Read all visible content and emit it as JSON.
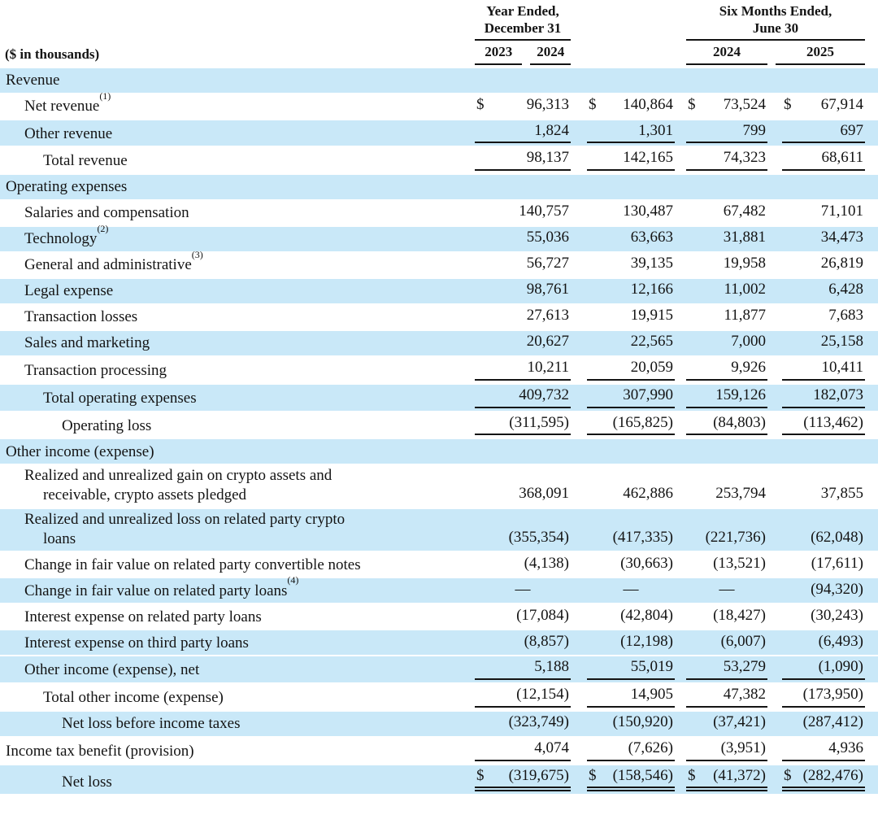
{
  "units_label": "($ in thousands)",
  "currency_symbol": "$",
  "colors": {
    "row_highlight": "#c9e8f8",
    "rule": "#141414",
    "text": "#141414"
  },
  "header": {
    "groups": [
      {
        "title_line1": "Year Ended,",
        "title_line2": "December 31",
        "years": [
          "2023",
          "2024"
        ]
      },
      {
        "title_line1": "Six Months Ended,",
        "title_line2": "June 30",
        "years": [
          "2024",
          "2025"
        ]
      }
    ]
  },
  "rows": [
    {
      "label": "Revenue",
      "indent": 0,
      "section": true,
      "shaded": true
    },
    {
      "label": "Net revenue",
      "sup": "(1)",
      "indent": 1,
      "dollar": true,
      "shaded": false,
      "values": [
        "96,313",
        "140,864",
        "73,524",
        "67,914"
      ]
    },
    {
      "label": "Other revenue",
      "indent": 1,
      "shaded": true,
      "underline": "single",
      "values": [
        "1,824",
        "1,301",
        "799",
        "697"
      ]
    },
    {
      "label": "Total revenue",
      "indent": 2,
      "shaded": false,
      "underline": "single",
      "values": [
        "98,137",
        "142,165",
        "74,323",
        "68,611"
      ]
    },
    {
      "label": "Operating expenses",
      "indent": 0,
      "section": true,
      "shaded": true
    },
    {
      "label": "Salaries and compensation",
      "indent": 1,
      "shaded": false,
      "values": [
        "140,757",
        "130,487",
        "67,482",
        "71,101"
      ]
    },
    {
      "label": "Technology",
      "sup": "(2)",
      "indent": 1,
      "shaded": true,
      "values": [
        "55,036",
        "63,663",
        "31,881",
        "34,473"
      ]
    },
    {
      "label": "General and administrative",
      "sup": "(3)",
      "indent": 1,
      "shaded": false,
      "values": [
        "56,727",
        "39,135",
        "19,958",
        "26,819"
      ]
    },
    {
      "label": "Legal expense",
      "indent": 1,
      "shaded": true,
      "values": [
        "98,761",
        "12,166",
        "11,002",
        "6,428"
      ]
    },
    {
      "label": "Transaction losses",
      "indent": 1,
      "shaded": false,
      "values": [
        "27,613",
        "19,915",
        "11,877",
        "7,683"
      ]
    },
    {
      "label": "Sales and marketing",
      "indent": 1,
      "shaded": true,
      "values": [
        "20,627",
        "22,565",
        "7,000",
        "25,158"
      ]
    },
    {
      "label": "Transaction processing",
      "indent": 1,
      "shaded": false,
      "underline": "single",
      "values": [
        "10,211",
        "20,059",
        "9,926",
        "10,411"
      ]
    },
    {
      "label": "Total operating expenses",
      "indent": 2,
      "shaded": true,
      "underline": "single",
      "values": [
        "409,732",
        "307,990",
        "159,126",
        "182,073"
      ]
    },
    {
      "label": "Operating loss",
      "indent": 3,
      "shaded": false,
      "underline": "single",
      "values": [
        "(311,595)",
        "(165,825)",
        "(84,803)",
        "(113,462)"
      ]
    },
    {
      "label": "Other income (expense)",
      "indent": 0,
      "section": true,
      "shaded": true
    },
    {
      "label": "Realized and unrealized gain on crypto assets and",
      "label2": "receivable, crypto assets pledged",
      "indent": 1,
      "shaded": false,
      "values": [
        "368,091",
        "462,886",
        "253,794",
        "37,855"
      ]
    },
    {
      "label": "Realized and unrealized loss on related party crypto",
      "label2": "loans",
      "indent": 1,
      "shaded": true,
      "values": [
        "(355,354)",
        "(417,335)",
        "(221,736)",
        "(62,048)"
      ]
    },
    {
      "label": "Change in fair value on related party convertible notes",
      "indent": 1,
      "shaded": false,
      "values": [
        "(4,138)",
        "(30,663)",
        "(13,521)",
        "(17,611)"
      ]
    },
    {
      "label": "Change in fair value on related party loans",
      "sup": "(4)",
      "indent": 1,
      "shaded": true,
      "values": [
        "—",
        "—",
        "—",
        "(94,320)"
      ]
    },
    {
      "label": "Interest expense on related party loans",
      "indent": 1,
      "shaded": false,
      "values": [
        "(17,084)",
        "(42,804)",
        "(18,427)",
        "(30,243)"
      ]
    },
    {
      "label": "Interest expense on third party loans",
      "indent": 1,
      "shaded": true,
      "values": [
        "(8,857)",
        "(12,198)",
        "(6,007)",
        "(6,493)"
      ]
    },
    {
      "label": "Other income (expense), net",
      "indent": 1,
      "shaded": true,
      "underline": "single",
      "values": [
        "5,188",
        "55,019",
        "53,279",
        "(1,090)"
      ]
    },
    {
      "label": "Total other income (expense)",
      "indent": 2,
      "shaded": false,
      "underline": "single",
      "values": [
        "(12,154)",
        "14,905",
        "47,382",
        "(173,950)"
      ]
    },
    {
      "label": "Net loss before income taxes",
      "indent": 3,
      "shaded": true,
      "values": [
        "(323,749)",
        "(150,920)",
        "(37,421)",
        "(287,412)"
      ]
    },
    {
      "label": "Income tax benefit (provision)",
      "indent": 0,
      "shaded": false,
      "underline": "single",
      "values": [
        "4,074",
        "(7,626)",
        "(3,951)",
        "4,936"
      ]
    },
    {
      "label": "Net loss",
      "indent": 3,
      "dollar": true,
      "shaded": true,
      "underline": "double",
      "values": [
        "(319,675)",
        "(158,546)",
        "(41,372)",
        "(282,476)"
      ]
    }
  ]
}
